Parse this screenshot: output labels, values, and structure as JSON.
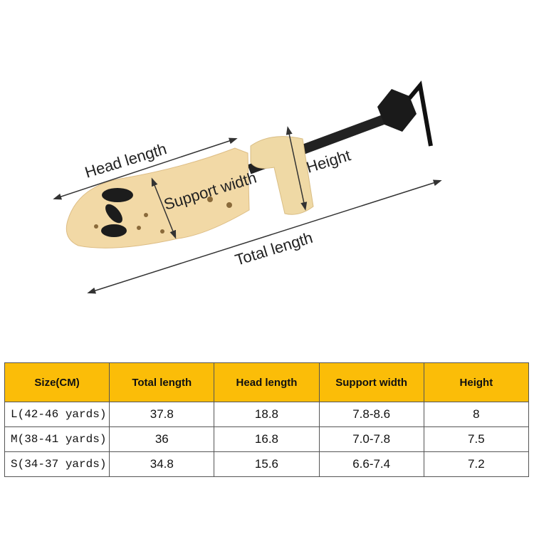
{
  "labels": {
    "head_length": "Head length",
    "support_width": "Support width",
    "height": "Height",
    "total_length": "Total length"
  },
  "table": {
    "headers": [
      "Size(CM)",
      "Total length",
      "Head length",
      "Support width",
      "Height"
    ],
    "rows": [
      [
        "L(42-46 yards)",
        "37.8",
        "18.8",
        "7.8-8.6",
        "8"
      ],
      [
        "M(38-41 yards)",
        "36",
        "16.8",
        "7.0-7.8",
        "7.5"
      ],
      [
        "S(34-37 yards)",
        "34.8",
        "15.6",
        "6.6-7.4",
        "7.2"
      ]
    ],
    "header_color": "#fbbd08"
  }
}
